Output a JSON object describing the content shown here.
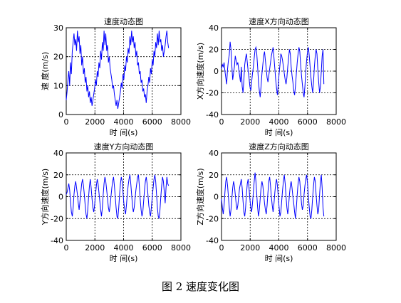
{
  "figure_caption": "图 2  速度变化图",
  "colors": {
    "line": "#0000ff",
    "axes": "#000000",
    "grid": "#000000",
    "background": "#ffffff"
  },
  "chart_data": [
    {
      "type": "line",
      "title": "速度动态图",
      "xlabel": "时 间(s)",
      "ylabel": "速 度(m/s)",
      "xlim": [
        0,
        8000
      ],
      "ylim": [
        0,
        30
      ],
      "xticks": [
        "0",
        "2000",
        "4000",
        "6000",
        "8000"
      ],
      "yticks": [
        "0",
        "10",
        "20",
        "30"
      ],
      "grid": true,
      "series": [
        {
          "x": [
            0,
            60,
            120,
            180,
            240,
            300,
            360,
            420,
            480,
            540,
            600,
            660,
            720,
            780,
            840,
            900,
            960,
            1020,
            1080,
            1140,
            1200,
            1260,
            1320,
            1380,
            1440,
            1500,
            1560,
            1620,
            1680,
            1740,
            1800,
            1860,
            1920,
            1980,
            2040,
            2100,
            2160,
            2220,
            2280,
            2340,
            2400,
            2460,
            2520,
            2580,
            2640,
            2700,
            2760,
            2820,
            2880,
            2940,
            3000,
            3060,
            3120,
            3180,
            3240,
            3300,
            3360,
            3420,
            3480,
            3540,
            3600,
            3660,
            3720,
            3780,
            3840,
            3900,
            3960,
            4020,
            4080,
            4140,
            4200,
            4260,
            4320,
            4380,
            4440,
            4500,
            4560,
            4620,
            4680,
            4740,
            4800,
            4860,
            4920,
            4980,
            5040,
            5100,
            5160,
            5220,
            5280,
            5340,
            5400,
            5460,
            5520,
            5580,
            5640,
            5700,
            5760,
            5820,
            5880,
            5940,
            6000,
            6060,
            6120,
            6180,
            6240,
            6300,
            6360,
            6420,
            6480,
            6540,
            6600,
            6660,
            6720,
            6780,
            6840,
            6900,
            6960,
            7020,
            7080,
            7140
          ],
          "y": [
            5,
            8,
            12,
            15,
            10,
            18,
            14,
            22,
            25,
            28,
            24,
            26,
            22,
            29,
            25,
            27,
            21,
            24,
            17,
            20,
            14,
            16,
            11,
            13,
            8,
            10,
            6,
            8,
            4,
            6,
            3,
            5,
            7,
            9,
            12,
            10,
            15,
            13,
            18,
            16,
            22,
            19,
            25,
            22,
            29,
            24,
            28,
            22,
            24,
            18,
            20,
            16,
            14,
            12,
            9,
            10,
            7,
            5,
            3,
            5,
            2,
            4,
            6,
            8,
            11,
            9,
            14,
            12,
            17,
            15,
            20,
            18,
            23,
            21,
            27,
            24,
            29,
            25,
            27,
            23,
            25,
            20,
            22,
            17,
            18,
            14,
            15,
            11,
            12,
            8,
            9,
            6,
            7,
            4,
            8,
            10,
            13,
            11,
            16,
            14,
            19,
            17,
            22,
            20,
            25,
            23,
            28,
            24,
            29,
            25,
            26,
            22,
            24,
            20,
            22,
            24,
            27,
            29,
            25,
            23
          ]
        }
      ]
    },
    {
      "type": "line",
      "title": "速度X方向动态图",
      "xlabel": "时 间(s)",
      "ylabel": "X方向速度(m/s)",
      "xlim": [
        0,
        8000
      ],
      "ylim": [
        -40,
        40
      ],
      "xticks": [
        "0",
        "2000",
        "4000",
        "6000",
        "8000"
      ],
      "yticks": [
        "-40",
        "-20",
        "0",
        "20",
        "40"
      ],
      "grid": true,
      "series": [
        {
          "x": [
            0,
            60,
            120,
            180,
            240,
            300,
            360,
            420,
            480,
            540,
            600,
            660,
            720,
            780,
            840,
            900,
            960,
            1020,
            1080,
            1140,
            1200,
            1260,
            1320,
            1380,
            1440,
            1500,
            1560,
            1620,
            1680,
            1740,
            1800,
            1860,
            1920,
            1980,
            2040,
            2100,
            2160,
            2220,
            2280,
            2340,
            2400,
            2460,
            2520,
            2580,
            2640,
            2700,
            2760,
            2820,
            2880,
            2940,
            3000,
            3060,
            3120,
            3180,
            3240,
            3300,
            3360,
            3420,
            3480,
            3540,
            3600,
            3660,
            3720,
            3780,
            3840,
            3900,
            3960,
            4020,
            4080,
            4140,
            4200,
            4260,
            4320,
            4380,
            4440,
            4500,
            4560,
            4620,
            4680,
            4740,
            4800,
            4860,
            4920,
            4980,
            5040,
            5100,
            5160,
            5220,
            5280,
            5340,
            5400,
            5460,
            5520,
            5580,
            5640,
            5700,
            5760,
            5820,
            5880,
            5940,
            6000,
            6060,
            6120,
            6180,
            6240,
            6300,
            6360,
            6420,
            6480,
            6540,
            6600,
            6660,
            6720,
            6780,
            6840,
            6900,
            6960,
            7020,
            7080,
            7140
          ],
          "y": [
            2,
            6,
            4,
            8,
            0,
            -6,
            -12,
            2,
            10,
            15,
            27,
            20,
            5,
            -8,
            -2,
            4,
            14,
            10,
            6,
            8,
            2,
            -4,
            -10,
            4,
            -14,
            -20,
            -8,
            6,
            12,
            16,
            8,
            0,
            -6,
            -14,
            -18,
            -10,
            -2,
            4,
            12,
            20,
            22,
            16,
            4,
            -10,
            -18,
            -24,
            -14,
            -2,
            6,
            14,
            18,
            10,
            2,
            -6,
            -10,
            -4,
            2,
            8,
            14,
            18,
            22,
            12,
            2,
            -8,
            -16,
            -22,
            -12,
            -2,
            6,
            16,
            14,
            10,
            4,
            -2,
            -8,
            -12,
            -6,
            4,
            12,
            20,
            16,
            4,
            -4,
            -10,
            -18,
            -22,
            -14,
            -2,
            8,
            16,
            22,
            18,
            6,
            -4,
            -12,
            -20,
            -24,
            -14,
            0,
            10,
            18,
            22,
            14,
            4,
            -6,
            -14,
            -20,
            -10,
            4,
            14,
            20,
            16,
            2,
            -10,
            -20,
            -14,
            0,
            14,
            20,
            -12
          ]
        }
      ]
    },
    {
      "type": "line",
      "title": "速度Y方向动态图",
      "xlabel": "时 间(s)",
      "ylabel": "Y方向速度(m/s)",
      "xlim": [
        0,
        8000
      ],
      "ylim": [
        -40,
        40
      ],
      "xticks": [
        "0",
        "2000",
        "4000",
        "6000",
        "8000"
      ],
      "yticks": [
        "-40",
        "-20",
        "0",
        "20",
        "40"
      ],
      "grid": true,
      "series": [
        {
          "x": [
            0,
            60,
            120,
            180,
            240,
            300,
            360,
            420,
            480,
            540,
            600,
            660,
            720,
            780,
            840,
            900,
            960,
            1020,
            1080,
            1140,
            1200,
            1260,
            1320,
            1380,
            1440,
            1500,
            1560,
            1620,
            1680,
            1740,
            1800,
            1860,
            1920,
            1980,
            2040,
            2100,
            2160,
            2220,
            2280,
            2340,
            2400,
            2460,
            2520,
            2580,
            2640,
            2700,
            2760,
            2820,
            2880,
            2940,
            3000,
            3060,
            3120,
            3180,
            3240,
            3300,
            3360,
            3420,
            3480,
            3540,
            3600,
            3660,
            3720,
            3780,
            3840,
            3900,
            3960,
            4020,
            4080,
            4140,
            4200,
            4260,
            4320,
            4380,
            4440,
            4500,
            4560,
            4620,
            4680,
            4740,
            4800,
            4860,
            4920,
            4980,
            5040,
            5100,
            5160,
            5220,
            5280,
            5340,
            5400,
            5460,
            5520,
            5580,
            5640,
            5700,
            5760,
            5820,
            5880,
            5940,
            6000,
            6060,
            6120,
            6180,
            6240,
            6300,
            6360,
            6420,
            6480,
            6540,
            6600,
            6660,
            6720,
            6780,
            6840,
            6900,
            6960,
            7020,
            7080,
            7140
          ],
          "y": [
            2,
            4,
            8,
            12,
            6,
            -4,
            -14,
            -18,
            -10,
            2,
            10,
            14,
            8,
            2,
            -6,
            -12,
            -4,
            4,
            12,
            16,
            10,
            2,
            -8,
            -16,
            -20,
            -12,
            0,
            10,
            16,
            8,
            -2,
            -10,
            -14,
            -8,
            2,
            10,
            16,
            12,
            4,
            -4,
            -12,
            -18,
            -10,
            2,
            12,
            18,
            14,
            6,
            -2,
            -10,
            -14,
            -8,
            0,
            8,
            14,
            18,
            10,
            0,
            -10,
            -18,
            -20,
            -10,
            2,
            12,
            18,
            14,
            4,
            -6,
            -12,
            -16,
            -8,
            2,
            10,
            16,
            20,
            12,
            2,
            -8,
            -14,
            -10,
            -2,
            6,
            12,
            18,
            20,
            10,
            -2,
            -12,
            -18,
            -14,
            -4,
            6,
            14,
            18,
            12,
            2,
            -8,
            -14,
            -18,
            -10,
            0,
            8,
            16,
            20,
            14,
            2,
            -10,
            -18,
            -20,
            -12,
            0,
            10,
            18,
            14,
            4,
            -6,
            8,
            18,
            12,
            10
          ]
        }
      ]
    },
    {
      "type": "line",
      "title": "速度Z方向动态图",
      "xlabel": "时 间(s)",
      "ylabel": "Z方向速度(m/s)",
      "xlim": [
        0,
        8000
      ],
      "ylim": [
        -40,
        40
      ],
      "xticks": [
        "0",
        "2000",
        "4000",
        "6000",
        "8000"
      ],
      "yticks": [
        "-40",
        "-20",
        "0",
        "20",
        "40"
      ],
      "grid": true,
      "series": [
        {
          "x": [
            0,
            60,
            120,
            180,
            240,
            300,
            360,
            420,
            480,
            540,
            600,
            660,
            720,
            780,
            840,
            900,
            960,
            1020,
            1080,
            1140,
            1200,
            1260,
            1320,
            1380,
            1440,
            1500,
            1560,
            1620,
            1680,
            1740,
            1800,
            1860,
            1920,
            1980,
            2040,
            2100,
            2160,
            2220,
            2280,
            2340,
            2400,
            2460,
            2520,
            2580,
            2640,
            2700,
            2760,
            2820,
            2880,
            2940,
            3000,
            3060,
            3120,
            3180,
            3240,
            3300,
            3360,
            3420,
            3480,
            3540,
            3600,
            3660,
            3720,
            3780,
            3840,
            3900,
            3960,
            4020,
            4080,
            4140,
            4200,
            4260,
            4320,
            4380,
            4440,
            4500,
            4560,
            4620,
            4680,
            4740,
            4800,
            4860,
            4920,
            4980,
            5040,
            5100,
            5160,
            5220,
            5280,
            5340,
            5400,
            5460,
            5520,
            5580,
            5640,
            5700,
            5760,
            5820,
            5880,
            5940,
            6000,
            6060,
            6120,
            6180,
            6240,
            6300,
            6360,
            6420,
            6480,
            6540,
            6600,
            6660,
            6720,
            6780,
            6840,
            6900,
            6960,
            7020,
            7080,
            7140
          ],
          "y": [
            -2,
            -10,
            -16,
            -8,
            4,
            14,
            18,
            10,
            0,
            -10,
            -18,
            -12,
            -2,
            8,
            14,
            10,
            2,
            -6,
            -12,
            -8,
            0,
            8,
            12,
            16,
            8,
            -4,
            -14,
            -18,
            -10,
            2,
            12,
            16,
            8,
            -2,
            -10,
            -14,
            -6,
            4,
            14,
            22,
            14,
            2,
            -10,
            -18,
            -12,
            -2,
            8,
            14,
            10,
            2,
            -6,
            -12,
            -16,
            -8,
            4,
            14,
            18,
            10,
            0,
            -8,
            -14,
            -6,
            4,
            12,
            16,
            10,
            0,
            -10,
            -18,
            -14,
            -4,
            6,
            14,
            20,
            12,
            0,
            -10,
            -16,
            -8,
            2,
            10,
            14,
            8,
            0,
            -6,
            -14,
            -20,
            -10,
            2,
            12,
            18,
            14,
            4,
            -6,
            -12,
            -8,
            2,
            10,
            16,
            20,
            12,
            0,
            -10,
            -18,
            -20,
            -12,
            0,
            10,
            18,
            14,
            2,
            -8,
            -16,
            -12,
            2,
            14,
            20,
            8,
            -10,
            -18
          ]
        }
      ]
    }
  ]
}
